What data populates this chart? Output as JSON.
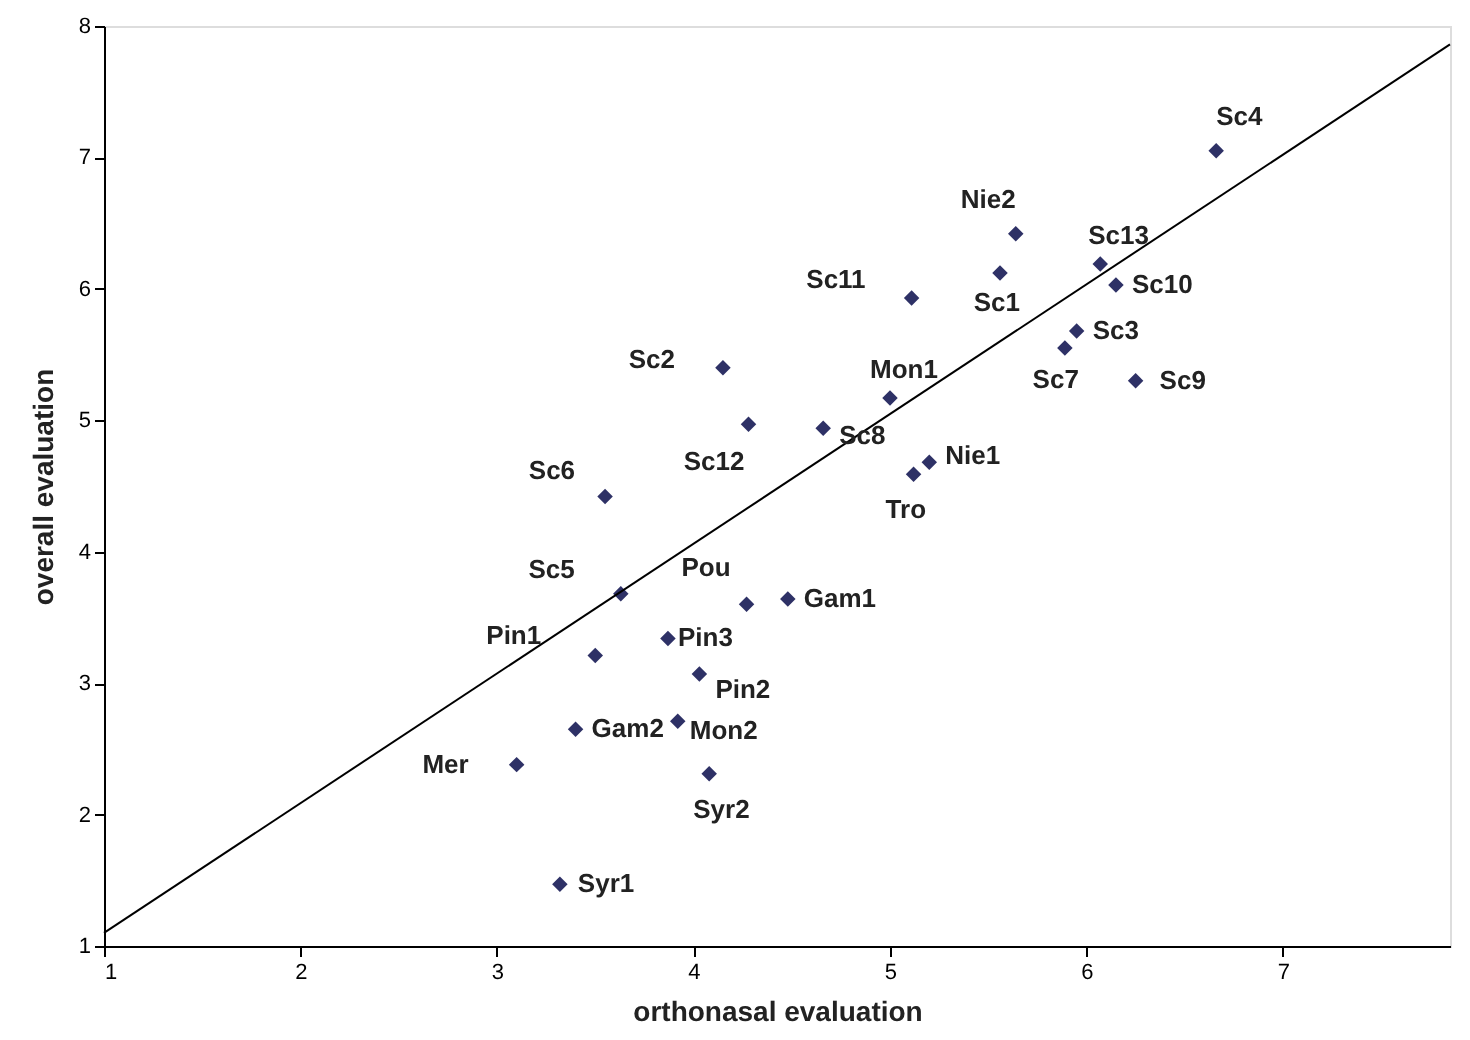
{
  "chart_data": {
    "type": "scatter",
    "xlabel": "orthonasal evaluation",
    "ylabel": "overall evaluation",
    "xlim": [
      1,
      7.85
    ],
    "ylim": [
      1,
      8
    ],
    "xticks": [
      1,
      2,
      3,
      4,
      5,
      6,
      7
    ],
    "yticks": [
      1,
      2,
      3,
      4,
      5,
      6,
      7,
      8
    ],
    "grid": false,
    "series": [
      {
        "marker": "diamond",
        "color": "#2e3166",
        "x": [
          6.66,
          5.64,
          5.56,
          6.07,
          6.15,
          5.11,
          5.95,
          5.89,
          6.25,
          4.15,
          5.0,
          4.28,
          4.66,
          5.2,
          5.12,
          3.55,
          3.63,
          4.27,
          4.48,
          3.87,
          3.5,
          4.03,
          3.92,
          3.4,
          3.1,
          4.08,
          3.32
        ],
        "values": [
          7.05,
          6.42,
          6.12,
          6.19,
          6.03,
          5.93,
          5.68,
          5.55,
          5.3,
          5.4,
          5.17,
          4.97,
          4.94,
          4.68,
          4.59,
          4.42,
          3.68,
          3.6,
          3.64,
          3.34,
          3.21,
          3.07,
          2.71,
          2.65,
          2.38,
          2.31,
          1.47
        ]
      },
      {
        "type": "line",
        "marker": "none",
        "line_style": "solid",
        "color": "#000000",
        "x": [
          1,
          7.85
        ],
        "values": [
          1.1,
          7.86
        ]
      }
    ],
    "annotations": [
      {
        "text": "Sc4",
        "x": 6.66,
        "y": 7.05
      },
      {
        "text": "Nie2",
        "x": 5.64,
        "y": 6.42
      },
      {
        "text": "Sc1",
        "x": 5.56,
        "y": 6.12
      },
      {
        "text": "Sc13",
        "x": 6.07,
        "y": 6.19
      },
      {
        "text": "Sc10",
        "x": 6.15,
        "y": 6.03
      },
      {
        "text": "Sc11",
        "x": 5.11,
        "y": 5.93
      },
      {
        "text": "Sc3",
        "x": 5.95,
        "y": 5.68
      },
      {
        "text": "Sc7",
        "x": 5.89,
        "y": 5.55
      },
      {
        "text": "Sc9",
        "x": 6.25,
        "y": 5.3
      },
      {
        "text": "Sc2",
        "x": 4.15,
        "y": 5.4
      },
      {
        "text": "Mon1",
        "x": 5.0,
        "y": 5.17
      },
      {
        "text": "Sc12",
        "x": 4.28,
        "y": 4.97
      },
      {
        "text": "Sc8",
        "x": 4.66,
        "y": 4.94
      },
      {
        "text": "Nie1",
        "x": 5.2,
        "y": 4.68
      },
      {
        "text": "Tro",
        "x": 5.12,
        "y": 4.59
      },
      {
        "text": "Sc6",
        "x": 3.55,
        "y": 4.42
      },
      {
        "text": "Sc5",
        "x": 3.63,
        "y": 3.68
      },
      {
        "text": "Pou",
        "x": 4.27,
        "y": 3.6
      },
      {
        "text": "Gam1",
        "x": 4.48,
        "y": 3.64
      },
      {
        "text": "Pin3",
        "x": 3.87,
        "y": 3.34
      },
      {
        "text": "Pin1",
        "x": 3.5,
        "y": 3.21
      },
      {
        "text": "Pin2",
        "x": 4.03,
        "y": 3.07
      },
      {
        "text": "Mon2",
        "x": 3.92,
        "y": 2.71
      },
      {
        "text": "Gam2",
        "x": 3.4,
        "y": 2.65
      },
      {
        "text": "Mer",
        "x": 3.1,
        "y": 2.38
      },
      {
        "text": "Syr2",
        "x": 4.08,
        "y": 2.31
      },
      {
        "text": "Syr1",
        "x": 3.32,
        "y": 1.47
      }
    ]
  }
}
